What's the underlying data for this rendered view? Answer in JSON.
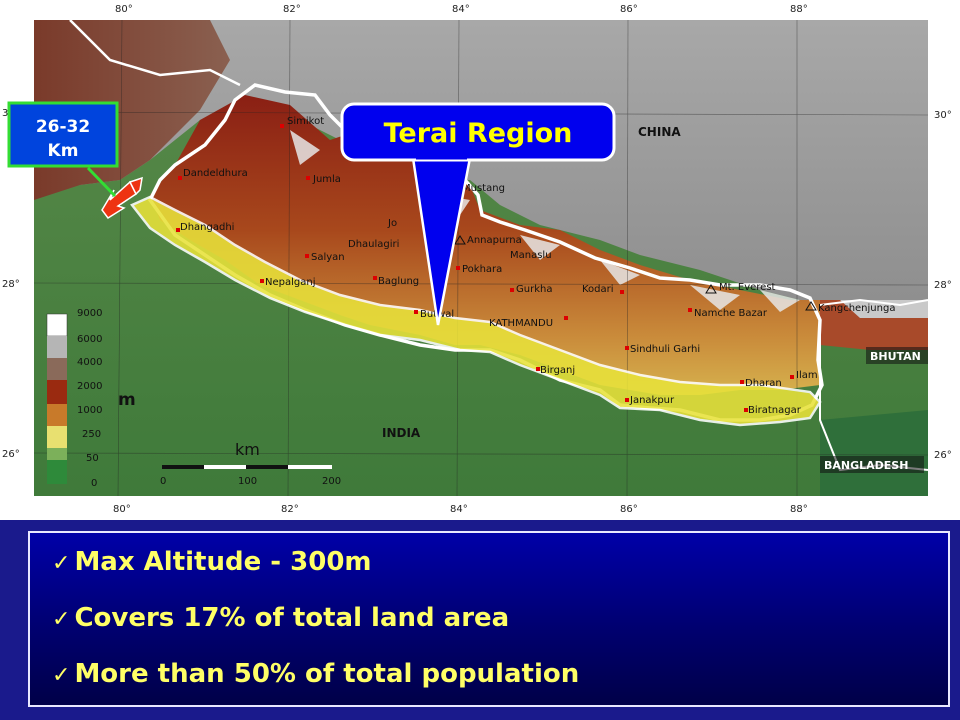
{
  "callout": {
    "title": "Terai Region"
  },
  "width_label": {
    "line1": "26-32",
    "line2": "Km"
  },
  "map": {
    "longitudes": [
      "80°",
      "82°",
      "84°",
      "86°",
      "88°"
    ],
    "latitudes": [
      "30°",
      "28°",
      "26°"
    ],
    "countries": {
      "china": "CHINA",
      "india": "INDIA",
      "bhutan": "BHUTAN",
      "bangladesh": "BANGLADESH"
    },
    "places": {
      "simikot": "Simikot",
      "dandeldhura": "Dandeldhura",
      "jumla": "Jumla",
      "jomsom": "Jo",
      "mustang": "Mustang",
      "annapurna": "Annapurna",
      "manaslu": "Manaslu",
      "dhaulagiri": "Dhaulagiri",
      "salyan": "Salyan",
      "baglung": "Baglung",
      "pokhara": "Pokhara",
      "gurkha": "Gurkha",
      "kodari": "Kodari",
      "everest": "Mt. Everest",
      "kangchenjunga": "Kangchenjunga",
      "namche": "Namche Bazar",
      "kathmandu": "KATHMANDU",
      "butwal": "Butwal",
      "dhangadhi": "Dhangadhi",
      "nepalganj": "Nepalganj",
      "sindhuli": "Sindhuli Garhi",
      "birganj": "Birganj",
      "janakpur": "Janakpur",
      "dharan": "Dharan",
      "ilam": "Ilam",
      "biratnagar": "Biratnagar"
    },
    "elevation_legend": {
      "unit": "m",
      "values": [
        "9000",
        "6000",
        "4000",
        "2000",
        "1000",
        "250",
        "50",
        "0"
      ],
      "colors": [
        "#ffffff",
        "#b5b5b5",
        "#8a6a5a",
        "#9a2a10",
        "#c87a2a",
        "#e8e070",
        "#7cb05a",
        "#2e8a3a"
      ]
    },
    "scale": {
      "unit": "km",
      "ticks": [
        "0",
        "100",
        "200"
      ]
    }
  },
  "facts": [
    {
      "check": "✓",
      "text": "Max Altitude - 300m"
    },
    {
      "check": "✓",
      "text": "Covers 17% of total land area"
    },
    {
      "check": "✓",
      "text": "More than 50% of total population"
    }
  ],
  "colors": {
    "callout_bg": "#0000ee",
    "callout_text": "#ffff00",
    "badge_bg": "#0044dd",
    "badge_border": "#33dd33",
    "terai_fill": "#e8e23a",
    "arrow": "#ee3311"
  }
}
